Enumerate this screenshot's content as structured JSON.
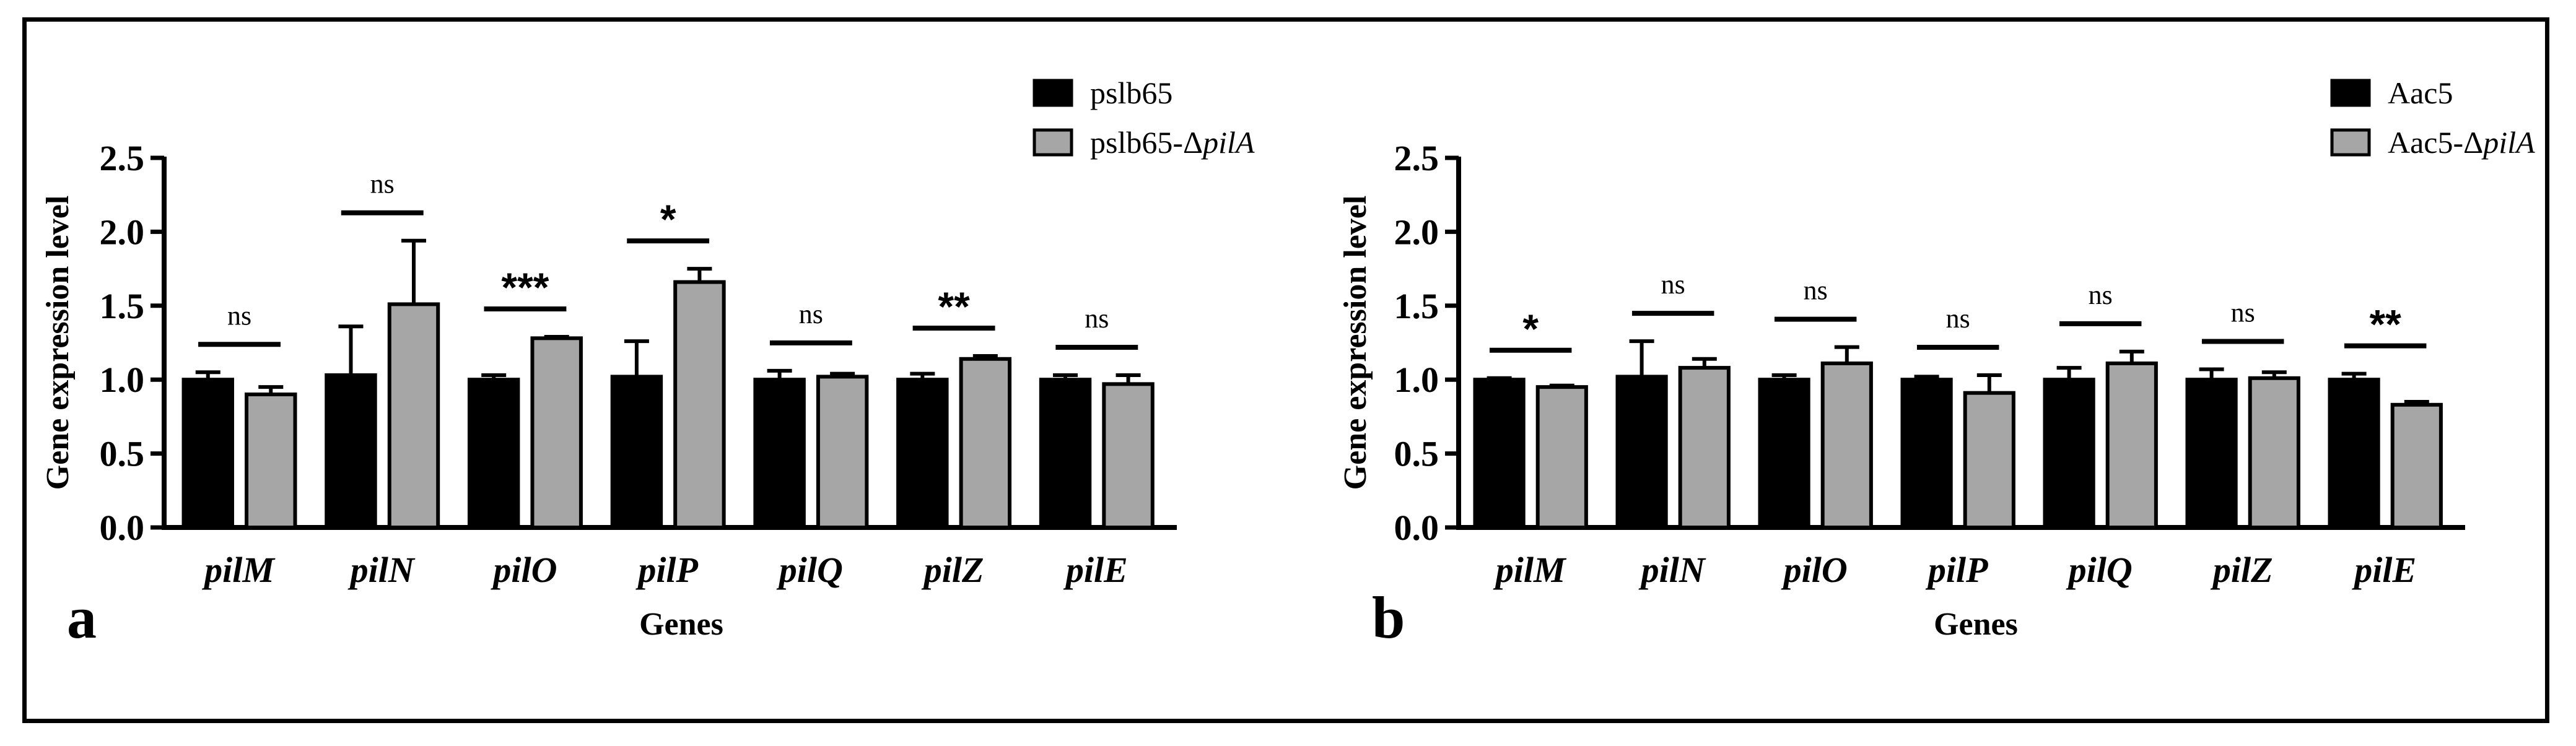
{
  "chart_data": [
    {
      "type": "bar",
      "panel_label": "a",
      "xlabel": "Genes",
      "ylabel": "Gene expression level",
      "ylim": [
        0,
        2.5
      ],
      "yticks": [
        "0.0",
        "0.5",
        "1.0",
        "1.5",
        "2.0",
        "2.5"
      ],
      "categories": [
        "pilM",
        "pilN",
        "pilO",
        "pilP",
        "pilQ",
        "pilZ",
        "pilE"
      ],
      "series": [
        {
          "name": "pslb65",
          "color": "#000000",
          "values": [
            1.0,
            1.03,
            1.0,
            1.02,
            1.0,
            1.0,
            1.0
          ],
          "errors": [
            0.05,
            0.33,
            0.03,
            0.24,
            0.06,
            0.04,
            0.03
          ]
        },
        {
          "name_prefix": "pslb65-Δ",
          "name_italic": "pilA",
          "color": "#a6a6a6",
          "values": [
            0.9,
            1.51,
            1.28,
            1.66,
            1.02,
            1.14,
            0.97
          ],
          "errors": [
            0.05,
            0.43,
            0.01,
            0.09,
            0.02,
            0.02,
            0.06
          ]
        }
      ],
      "significance": [
        "ns",
        "ns",
        "***",
        "*",
        "ns",
        "**",
        "ns"
      ],
      "legend_position": "top-right"
    },
    {
      "type": "bar",
      "panel_label": "b",
      "xlabel": "Genes",
      "ylabel": "Gene expression level",
      "ylim": [
        0,
        2.5
      ],
      "yticks": [
        "0.0",
        "0.5",
        "1.0",
        "1.5",
        "2.0",
        "2.5"
      ],
      "categories": [
        "pilM",
        "pilN",
        "pilO",
        "pilP",
        "pilQ",
        "pilZ",
        "pilE"
      ],
      "series": [
        {
          "name": "Aac5",
          "color": "#000000",
          "values": [
            1.0,
            1.02,
            1.0,
            1.0,
            1.0,
            1.0,
            1.0
          ],
          "errors": [
            0.01,
            0.24,
            0.03,
            0.02,
            0.08,
            0.07,
            0.04
          ]
        },
        {
          "name_prefix": "Aac5-Δ",
          "name_italic": "pilA",
          "color": "#a6a6a6",
          "values": [
            0.95,
            1.08,
            1.11,
            0.91,
            1.11,
            1.01,
            0.83
          ],
          "errors": [
            0.01,
            0.06,
            0.11,
            0.12,
            0.08,
            0.04,
            0.02
          ]
        }
      ],
      "significance": [
        "*",
        "ns",
        "ns",
        "ns",
        "ns",
        "ns",
        "**"
      ],
      "legend_position": "top-right"
    }
  ]
}
